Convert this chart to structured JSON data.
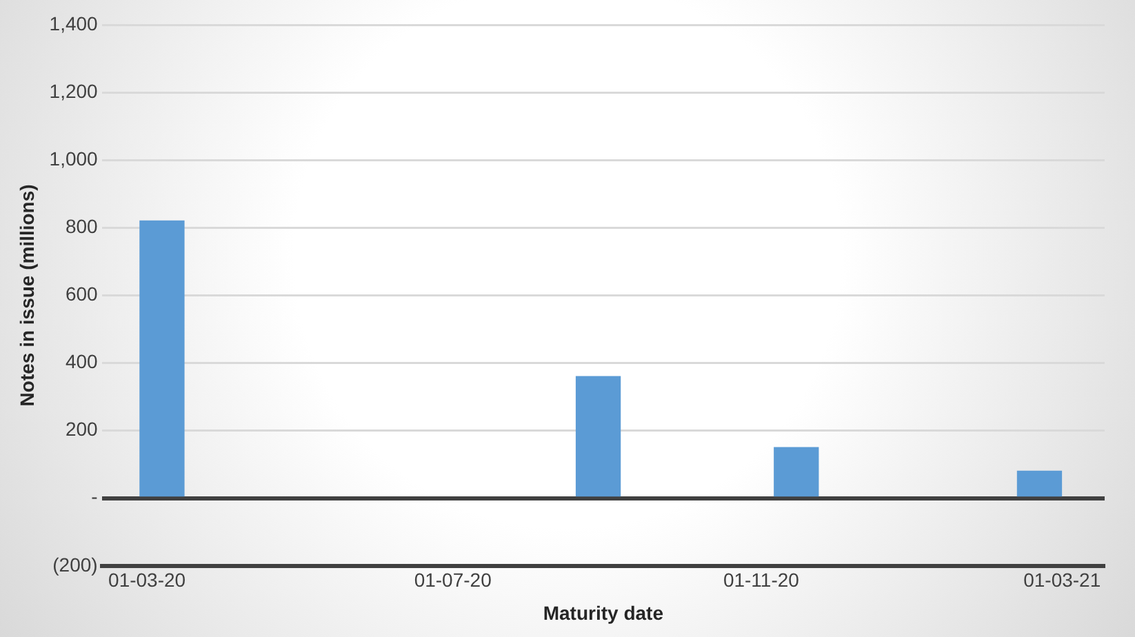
{
  "chart_data": {
    "type": "bar",
    "xlabel": "Maturity date",
    "ylabel": "Notes in issue (millions)",
    "x": [
      "2020-03-07",
      "2020-08-28",
      "2020-11-15",
      "2021-02-20"
    ],
    "values": [
      820,
      360,
      150,
      80
    ],
    "color": "#5b9bd5",
    "xlim": [
      "2020-02-12",
      "2021-03-18"
    ],
    "xticks": [
      {
        "value": "2020-03-01",
        "label": "01-03-20"
      },
      {
        "value": "2020-07-01",
        "label": "01-07-20"
      },
      {
        "value": "2020-11-01",
        "label": "01-11-20"
      },
      {
        "value": "2021-03-01",
        "label": "01-03-21"
      }
    ],
    "ylim": [
      -200,
      1400
    ],
    "yticks": [
      {
        "value": -200,
        "label": "(200)"
      },
      {
        "value": 0,
        "label": "-"
      },
      200,
      400,
      600,
      800,
      {
        "value": 1000,
        "label": "1,000"
      },
      {
        "value": 1200,
        "label": "1,200"
      },
      {
        "value": 1400,
        "label": "1,400"
      }
    ],
    "grid": "y"
  }
}
